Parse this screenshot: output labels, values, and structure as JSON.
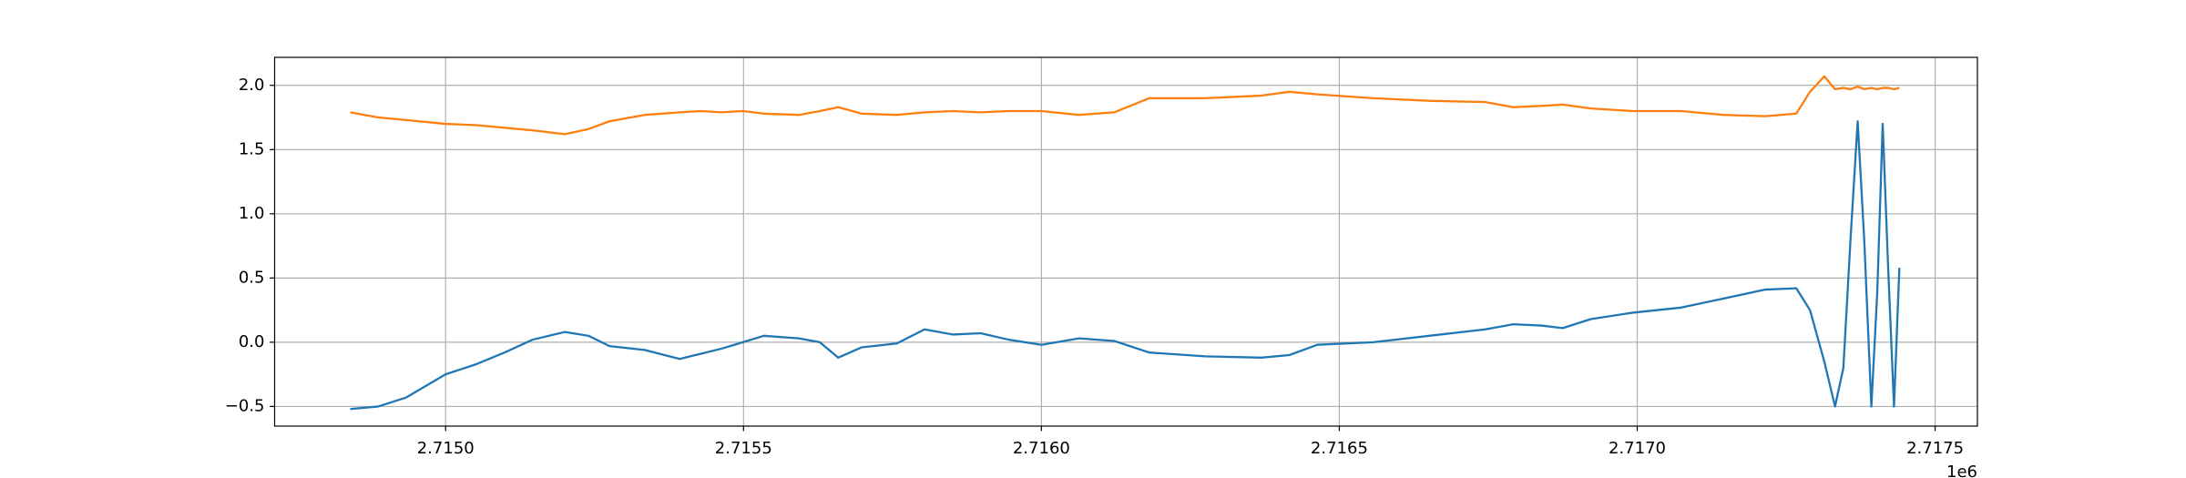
{
  "chart_data": {
    "type": "line",
    "x": [
      2714840,
      2714887,
      2714934,
      2715000,
      2715052,
      2715099,
      2715146,
      2715200,
      2715240,
      2715275,
      2715334,
      2715393,
      2715428,
      2715463,
      2715499,
      2715534,
      2715593,
      2715628,
      2715659,
      2715698,
      2715757,
      2715804,
      2715851,
      2715898,
      2715945,
      2716000,
      2716063,
      2716122,
      2716181,
      2716275,
      2716369,
      2716416,
      2716463,
      2716557,
      2716651,
      2716745,
      2716792,
      2716839,
      2716875,
      2716922,
      2716992,
      2717074,
      2717145,
      2717215,
      2717267,
      2717290,
      2717314,
      2717332,
      2717346,
      2717358,
      2717370,
      2717381,
      2717393,
      2717403,
      2717412,
      2717421,
      2717431,
      2717440
    ],
    "series": [
      {
        "color": "#1f77b4",
        "values": [
          -0.52,
          -0.5,
          -0.43,
          -0.25,
          -0.17,
          -0.08,
          0.02,
          0.08,
          0.05,
          -0.03,
          -0.06,
          -0.13,
          -0.09,
          -0.05,
          0.0,
          0.05,
          0.03,
          0.0,
          -0.12,
          -0.04,
          -0.01,
          0.1,
          0.06,
          0.07,
          0.02,
          -0.02,
          0.03,
          0.01,
          -0.08,
          -0.11,
          -0.12,
          -0.1,
          -0.02,
          0.0,
          0.05,
          0.1,
          0.14,
          0.13,
          0.11,
          0.18,
          0.23,
          0.27,
          0.34,
          0.41,
          0.42,
          0.25,
          -0.15,
          -0.5,
          -0.2,
          0.8,
          1.72,
          0.8,
          -0.5,
          0.4,
          1.7,
          0.6,
          -0.5,
          0.58
        ]
      },
      {
        "color": "#ff7f0e",
        "values": [
          1.79,
          1.75,
          1.73,
          1.7,
          1.69,
          1.67,
          1.65,
          1.62,
          1.66,
          1.72,
          1.77,
          1.79,
          1.8,
          1.79,
          1.8,
          1.78,
          1.77,
          1.8,
          1.83,
          1.78,
          1.77,
          1.79,
          1.8,
          1.79,
          1.8,
          1.8,
          1.77,
          1.79,
          1.9,
          1.9,
          1.92,
          1.95,
          1.93,
          1.9,
          1.88,
          1.87,
          1.83,
          1.84,
          1.85,
          1.82,
          1.8,
          1.8,
          1.77,
          1.76,
          1.78,
          1.95,
          2.07,
          1.97,
          1.98,
          1.97,
          1.99,
          1.97,
          1.98,
          1.97,
          1.98,
          1.98,
          1.97,
          1.98
        ]
      }
    ],
    "xlim": [
      2714713,
      2717571
    ],
    "xticks": [
      {
        "value": 2715000,
        "label": "2.7150"
      },
      {
        "value": 2715500,
        "label": "2.7155"
      },
      {
        "value": 2716000,
        "label": "2.7160"
      },
      {
        "value": 2716500,
        "label": "2.7165"
      },
      {
        "value": 2717000,
        "label": "2.7170"
      },
      {
        "value": 2717500,
        "label": "2.7175"
      }
    ],
    "x_offset_label": "1e6",
    "ylim": [
      -0.653,
      2.218
    ],
    "yticks": [
      {
        "value": -0.5,
        "label": "−0.5"
      },
      {
        "value": 0,
        "label": "0.0"
      },
      0.5,
      {
        "value": 1,
        "label": "1.0"
      },
      1.5,
      {
        "value": 2,
        "label": "2.0"
      }
    ],
    "grid": true
  }
}
